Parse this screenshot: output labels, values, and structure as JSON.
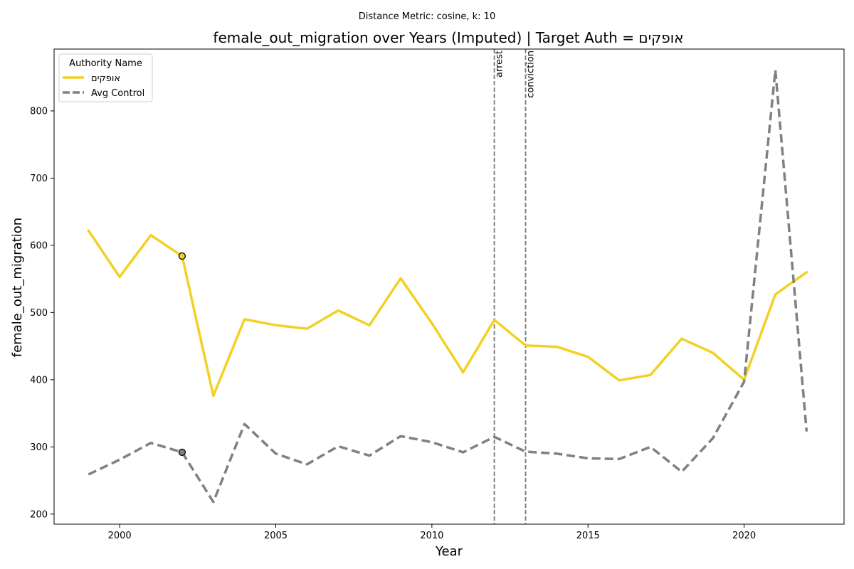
{
  "suptitle": "Distance Metric: cosine, k: 10",
  "chart_data": {
    "type": "line",
    "title": "female_out_migration over Years (Imputed) | Target Auth = אופקים",
    "xlabel": "Year",
    "ylabel": "female_out_migration",
    "xlim": [
      1997.9,
      2023.2
    ],
    "ylim": [
      185,
      892
    ],
    "x_ticks": [
      2000,
      2005,
      2010,
      2015,
      2020
    ],
    "y_ticks": [
      200,
      300,
      400,
      500,
      600,
      700,
      800
    ],
    "legend": {
      "title": "Authority Name",
      "placement": "top-left"
    },
    "x": [
      1999,
      2000,
      2001,
      2002,
      2003,
      2004,
      2005,
      2006,
      2007,
      2008,
      2009,
      2010,
      2011,
      2012,
      2013,
      2014,
      2015,
      2016,
      2017,
      2018,
      2019,
      2020,
      2021,
      2022
    ],
    "series": [
      {
        "name": "אופקים",
        "color": "#f2d024",
        "style": "solid",
        "values": [
          622,
          553,
          615,
          584,
          376,
          490,
          481,
          476,
          503,
          481,
          551,
          484,
          411,
          489,
          451,
          449,
          434,
          399,
          407,
          461,
          440,
          400,
          527,
          560
        ]
      },
      {
        "name": "Avg Control",
        "color": "#808080",
        "style": "dashed",
        "values": [
          259,
          281,
          306,
          292,
          218,
          334,
          290,
          274,
          301,
          287,
          316,
          307,
          292,
          315,
          293,
          290,
          283,
          282,
          300,
          263,
          313,
          397,
          861,
          323
        ]
      }
    ],
    "markers": [
      {
        "series": "אופקים",
        "x": 2002,
        "y": 584
      },
      {
        "series": "Avg Control",
        "x": 2002,
        "y": 292
      }
    ],
    "events": [
      {
        "label": "arrest",
        "x": 2012
      },
      {
        "label": "conviction",
        "x": 2013
      }
    ]
  }
}
